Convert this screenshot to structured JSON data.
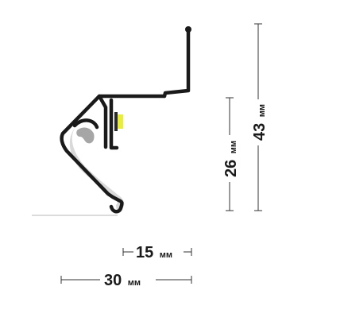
{
  "dimensions": {
    "height_total": {
      "value": "43",
      "unit": "мм"
    },
    "height_inner": {
      "value": "26",
      "unit": "мм"
    },
    "width_inner": {
      "value": "15",
      "unit": "мм"
    },
    "width_total": {
      "value": "30",
      "unit": "мм"
    }
  },
  "colors": {
    "profile": "#1a1a1a",
    "diffuser": "#d9d9d9",
    "gasket": "#a6a6a6",
    "led_strip": "#e8ee3a"
  }
}
